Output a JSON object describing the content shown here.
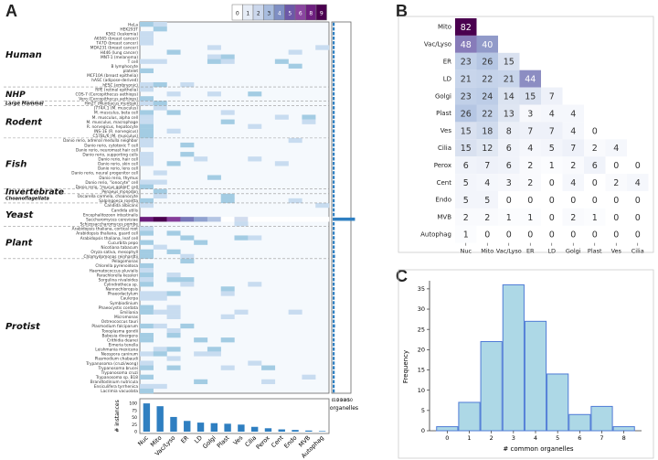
{
  "panels": {
    "a": "A",
    "b": "B",
    "c": "C"
  },
  "colors": {
    "blues": [
      "#f7fbff",
      "#deebf7",
      "#c6dbef",
      "#9ecae1",
      "#6baed6",
      "#4292c6",
      "#2171b5",
      "#08519c",
      "#08306b"
    ],
    "purples": [
      "#ffffff",
      "#e6ecf6",
      "#cbd7ec",
      "#a8bcde",
      "#7f8fc4",
      "#6d58a8",
      "#8a46a0",
      "#6e1f80",
      "#4a004f"
    ],
    "bar": "#2f7fc1",
    "hist_fill": "#add8e6",
    "hist_edge": "#4f7bd6"
  },
  "chart_data": [
    {
      "type": "heatmap",
      "title": "",
      "columns": [
        "Nuc",
        "Mito",
        "Vac/Lyso",
        "ER",
        "LD",
        "Golgi",
        "Plast",
        "Ves",
        "Cilia",
        "Perox",
        "Cent",
        "Endo",
        "MVB",
        "Autophag"
      ],
      "scale_ticks": [
        "0",
        "1",
        "2",
        "3",
        "4",
        "5",
        "6",
        "8",
        "9"
      ],
      "rows": [
        "HeLa",
        "HEK293T",
        "K562 (leukemia)",
        "A6565 (breast cancer)",
        "T47D (breast cancer)",
        "MDA231 (breast cancer)",
        "H446 (lung cancer)",
        "MNT-1 (melanoma)",
        "T cell",
        "B lymphocyte",
        "platelet",
        "MCF10A (breast epithelia)",
        "hASC (adipose-derived)",
        "hESC (embryonic)",
        "RPE (retinal epithelia)",
        "COS-7 (Cercopithecus aethiops)",
        "Vero (Cercopithecus aethiops)",
        "Hm2T (Muntiacus muntjak)",
        "J774A.1 (M. musculus)",
        "M. musculus, beta cell",
        "M. musculus, alpha cell",
        "M. musculus, macrophage",
        "R. norvegicus, hepatocyte",
        "INS-1E (R. norvegicus)",
        "C57BL/6 (M. musculus)",
        "Danio rerio, adrenal medulla neighbor",
        "Danio rerio, cytotoxic T cell",
        "Danio rerio, neuromast hair cell",
        "Danio rerio, supporting cells",
        "Danio rerio, hair cell",
        "Danio rerio, skin cell",
        "Danio rerio, lens cell",
        "Danio rerio, neural progenitor cell",
        "Danio rerio, thymus",
        "Danio rerio, \"ionocyte\" cell",
        "Danio rerio, \"mucus goblet\" cell",
        "Penaeus monodon",
        "Oscarella carmela, choanocyte",
        "Salpingoeca rosetta",
        "Candida albicans",
        "Candida utilis",
        "Encephalitozoon intestinalis",
        "Saccharomyces cerevisiae",
        "Schizosaccharomyces pombe",
        "Arabidopsis thaliana, cortical root",
        "Arabidopsis thaliana, guard cell",
        "Arabidopsis thaliana, leaf cell",
        "Cucurbita pepo",
        "Nicotiana tabacum",
        "Oryza sativa, mesophyll",
        "Chlamydomonas reinhardtii",
        "Pelagomonas",
        "Chlorella pyrenoidosa",
        "Haematococcus pluvialis",
        "Parachlorella kessleri",
        "Sorgulina nivaloides",
        "Cylindrotheca sp.",
        "Nannochloropsis",
        "Phaeodactylum",
        "Caulerpa",
        "Symbiodinium",
        "Phaeocystis cordata",
        "Emiliania",
        "Micromonas",
        "Ostreococcus tauri",
        "Plasmodium falciparum",
        "Toxoplasma gondii",
        "Babesia divergens",
        "Crithidia deanei",
        "Eimeria tenella",
        "Leishmania mexicana",
        "Neospora caninum",
        "Plasmodium chabaudi",
        "Trypanosoma (cruzi/wong)",
        "Trypanosoma brucei",
        "Trypanosoma cruzi",
        "Trypanosoma sp. B18",
        "Brandtodinium nutricula",
        "Ensiculifera tyrrhenica",
        "Lacrimia vacuolata"
      ],
      "groups": [
        "Human",
        "NHP",
        "Large Mammal",
        "Rodent",
        "Fish",
        "Invertebrate",
        "Choanoflagellata",
        "Yeast",
        "Plant",
        "Protist"
      ],
      "species_per_organelle": [
        100,
        90,
        52,
        38,
        32,
        30,
        28,
        25,
        17,
        12,
        8,
        6,
        4,
        2
      ],
      "organelles_per_species": [
        1,
        1,
        1,
        1,
        1,
        1,
        1,
        1,
        1,
        1,
        1,
        1,
        1,
        1,
        1,
        1,
        1,
        1,
        2,
        2,
        2,
        2,
        2,
        2,
        1,
        1,
        1,
        1,
        1,
        1,
        1,
        1,
        1,
        1,
        1,
        1,
        1,
        1,
        1,
        1,
        1,
        1,
        13,
        1,
        2,
        1,
        2,
        2,
        2,
        2,
        3,
        1,
        1,
        1,
        1,
        1,
        1,
        1,
        1,
        1,
        1,
        1,
        1,
        1,
        1,
        3,
        1,
        1,
        1,
        1,
        2,
        1,
        1,
        2,
        2,
        2,
        2,
        1,
        1,
        2
      ],
      "side_ticks": [
        "0",
        "10",
        "20",
        "30",
        "40",
        "50"
      ],
      "side_xlabel": "# organelles",
      "bottom_ticks": [
        "0",
        "25",
        "50",
        "75",
        "100"
      ],
      "bottom_ylabel": "# instances"
    },
    {
      "type": "heatmap",
      "title": "",
      "labels": [
        "Mito",
        "Vac/Lyso",
        "ER",
        "LD",
        "Golgi",
        "Plast",
        "Ves",
        "Cilia",
        "Perox",
        "Cent",
        "Endo",
        "MVB",
        "Autophag"
      ],
      "col_labels": [
        "Nuc",
        "Mito",
        "Vac/Lyso",
        "ER",
        "LD",
        "Golgi",
        "Plast",
        "Ves",
        "Cilia"
      ],
      "matrix": [
        [
          82
        ],
        [
          48,
          40
        ],
        [
          23,
          26,
          15
        ],
        [
          21,
          22,
          21,
          44
        ],
        [
          23,
          24,
          14,
          15,
          7
        ],
        [
          26,
          22,
          13,
          3,
          4,
          4
        ],
        [
          15,
          18,
          8,
          7,
          7,
          4,
          0
        ],
        [
          15,
          12,
          6,
          4,
          5,
          7,
          2,
          4
        ],
        [
          6,
          7,
          6,
          2,
          1,
          2,
          6,
          0,
          0
        ],
        [
          5,
          4,
          3,
          2,
          0,
          4,
          0,
          2,
          4
        ],
        [
          5,
          5,
          0,
          0,
          0,
          0,
          0,
          0,
          0
        ],
        [
          2,
          2,
          1,
          1,
          0,
          2,
          1,
          0,
          0
        ],
        [
          1,
          0,
          0,
          0,
          0,
          0,
          0,
          0,
          0
        ]
      ],
      "vmax": 82
    },
    {
      "type": "bar",
      "title": "",
      "categories": [
        "0",
        "1",
        "2",
        "3",
        "4",
        "5",
        "6",
        "7",
        "8"
      ],
      "values": [
        1,
        7,
        22,
        36,
        27,
        14,
        4,
        6,
        1
      ],
      "xlabel": "# common organelles",
      "ylabel": "Frequency",
      "yticks": [
        "0",
        "5",
        "10",
        "15",
        "20",
        "25",
        "30",
        "35"
      ],
      "ylim": [
        0,
        37
      ]
    }
  ]
}
